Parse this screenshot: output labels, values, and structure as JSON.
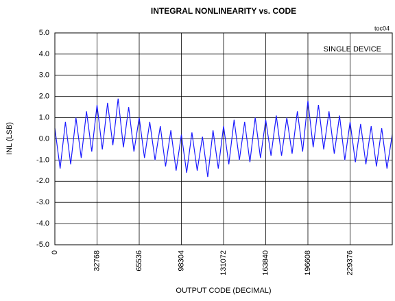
{
  "chart_data": {
    "type": "line",
    "title": "INTEGRAL NONLINEARITY vs. CODE",
    "x_label": "OUTPUT CODE (DECIMAL)",
    "y_label": "INL (LSB)",
    "annotations": [
      "toc04",
      "SINGLE DEVICE"
    ],
    "x": [
      0,
      4096,
      8192,
      12288,
      16384,
      20480,
      24576,
      28672,
      32768,
      36864,
      40960,
      45056,
      49152,
      53248,
      57344,
      61440,
      65536,
      69632,
      73728,
      77824,
      81920,
      86016,
      90112,
      94208,
      98304,
      102400,
      106496,
      110592,
      114688,
      118784,
      122880,
      126976,
      131072,
      135168,
      139264,
      143360,
      147456,
      151552,
      155648,
      159744,
      163840,
      167936,
      172032,
      176128,
      180224,
      184320,
      188416,
      192512,
      196608,
      200704,
      204800,
      208896,
      212992,
      217088,
      221184,
      225280,
      229376,
      233472,
      237568,
      241664,
      245760,
      249856,
      253952,
      258048,
      262144
    ],
    "series": [
      {
        "color": "#1a1aff",
        "values": [
          0.5,
          -1.4,
          0.8,
          -1.2,
          1.0,
          -0.9,
          1.3,
          -0.6,
          1.6,
          -0.5,
          1.7,
          -0.3,
          1.9,
          -0.4,
          1.5,
          -0.6,
          1.0,
          -0.9,
          0.8,
          -1.0,
          0.6,
          -1.3,
          0.4,
          -1.5,
          0.2,
          -1.6,
          0.3,
          -1.5,
          0.1,
          -1.8,
          0.4,
          -1.4,
          0.6,
          -1.2,
          0.9,
          -1.0,
          0.8,
          -1.1,
          1.0,
          -0.9,
          0.9,
          -0.8,
          1.1,
          -0.8,
          1.0,
          -0.7,
          1.3,
          -0.6,
          1.8,
          -0.4,
          1.6,
          -0.5,
          1.3,
          -0.7,
          1.1,
          -1.0,
          0.8,
          -1.1,
          0.7,
          -1.2,
          0.6,
          -1.3,
          0.5,
          -1.4,
          0.2
        ]
      }
    ],
    "xlim": [
      0,
      262144
    ],
    "xticks": [
      0,
      32768,
      65536,
      98304,
      131072,
      163840,
      196608,
      229376
    ],
    "ylim": [
      -5,
      5
    ],
    "yticks": [
      {
        "value": 5,
        "label": "5.0"
      },
      {
        "value": 4,
        "label": "4.0"
      },
      {
        "value": 3,
        "label": "3.0"
      },
      {
        "value": 2,
        "label": "2.0"
      },
      {
        "value": 1,
        "label": "1.0"
      },
      {
        "value": 0,
        "label": "0.0"
      },
      {
        "value": -1,
        "label": "-1.0"
      },
      {
        "value": -2,
        "label": "-2.0"
      },
      {
        "value": -3,
        "label": "-3.0"
      },
      {
        "value": -4,
        "label": "-4.0"
      },
      {
        "value": -5,
        "label": "-5.0"
      }
    ],
    "grid": true
  }
}
